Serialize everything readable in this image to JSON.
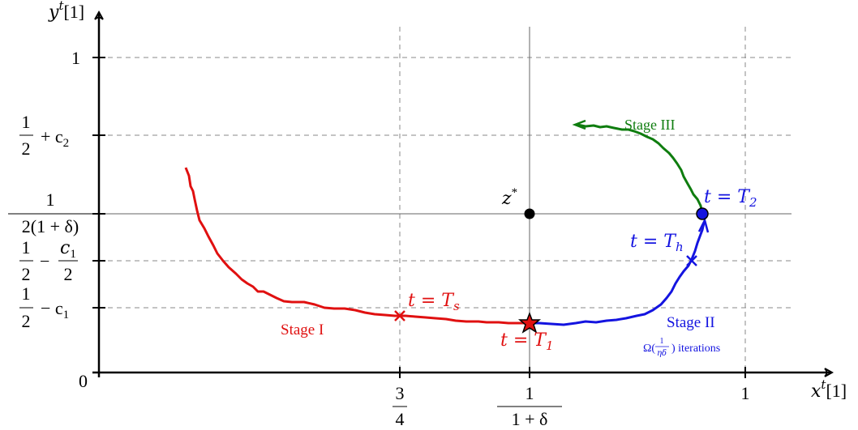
{
  "axes": {
    "x_label_main": "x",
    "x_label_sup": "t",
    "x_label_idx": "[1]",
    "y_label_main": "y",
    "y_label_sup": "t",
    "y_label_idx": "[1]",
    "origin": "0"
  },
  "x_ticks": {
    "three_quarters": {
      "num": "3",
      "den": "4"
    },
    "inv_one_plus_delta": {
      "num": "1",
      "den": "1 + δ"
    },
    "one": "1"
  },
  "y_ticks": {
    "one": "1",
    "half_plus_c2": {
      "num": "1",
      "den": "2",
      "rest": "+ c",
      "sub": "2"
    },
    "inv_two_one_plus_delta": {
      "num": "1",
      "den": "2(1 + δ)"
    },
    "half_minus_c1_half": {
      "num": "1",
      "den": "2",
      "minus": "−",
      "num2": "c",
      "num2sub": "1",
      "den2": "2"
    },
    "half_minus_c1": {
      "num": "1",
      "den": "2",
      "rest": "− c",
      "sub": "1"
    }
  },
  "points": {
    "z_star": "z",
    "z_star_sup": "*"
  },
  "annotations": {
    "t_Ts": {
      "lhs": "t = T",
      "sub": "s"
    },
    "t_T1": {
      "lhs": "t = T",
      "sub": "1"
    },
    "t_Th": {
      "lhs": "t = T",
      "sub": "h"
    },
    "t_T2": {
      "lhs": "t = T",
      "sub": "2"
    }
  },
  "stages": {
    "stage1": "Stage I",
    "stage2": "Stage II",
    "stage2_omega": "Ω(",
    "stage2_frac_num": "1",
    "stage2_frac_den": "ηδ",
    "stage2_close": ") iterations",
    "stage3": "Stage III"
  },
  "colors": {
    "stage1": "#e01010",
    "stage2": "#1414e0",
    "stage3": "#0f7d0f",
    "point": "#000000"
  }
}
